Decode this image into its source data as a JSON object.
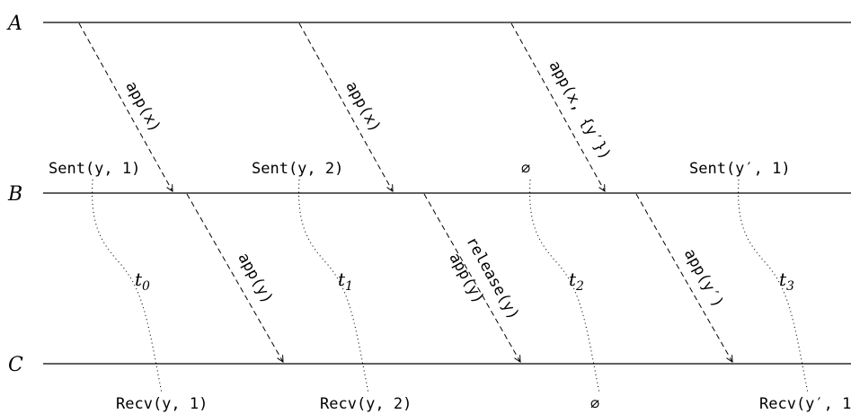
{
  "processes": [
    {
      "label": "A"
    },
    {
      "label": "B"
    },
    {
      "label": "C"
    }
  ],
  "messages_ab": [
    "app(x)",
    "app(x)",
    "app(x, {y′})"
  ],
  "messages_bc": [
    "app(y)",
    "app(y)",
    "release(y)",
    "app(y′)"
  ],
  "sent_labels": [
    "Sent(y, 1)",
    "Sent(y, 2)",
    "∅",
    "Sent(y′, 1)"
  ],
  "time_labels": [
    {
      "base": "t",
      "sub": "0"
    },
    {
      "base": "t",
      "sub": "1"
    },
    {
      "base": "t",
      "sub": "2"
    },
    {
      "base": "t",
      "sub": "3"
    }
  ],
  "recv_labels": [
    "Recv(y, 1)",
    "Recv(y, 2)",
    "∅",
    "Recv(y′, 1"
  ]
}
